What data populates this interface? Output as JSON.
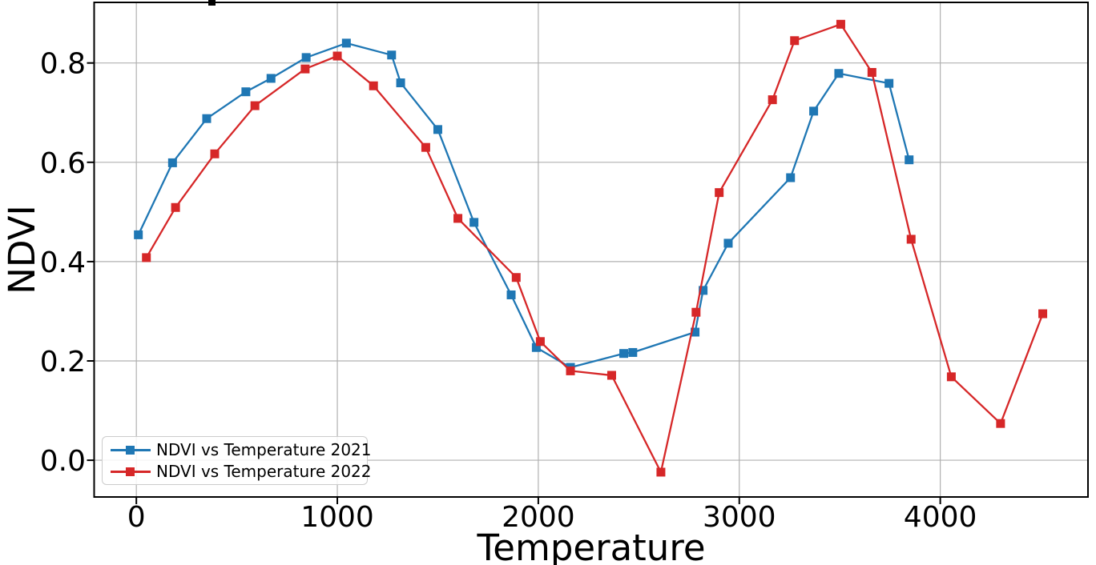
{
  "figure": {
    "background": "#ffffff"
  },
  "chart_data": {
    "type": "line",
    "xlabel": "Temperature",
    "ylabel": "NDVI",
    "x_ticks": {
      "values": [
        0,
        1000,
        2000,
        3000,
        4000
      ],
      "labels": [
        "0",
        "1000",
        "2000",
        "3000",
        "4000"
      ]
    },
    "y_ticks": {
      "values": [
        0.0,
        0.2,
        0.4,
        0.6,
        0.8
      ],
      "labels": [
        "0.0",
        "0.2",
        "0.4",
        "0.6",
        "0.8"
      ]
    },
    "xlim": [
      -210,
      4735
    ],
    "ylim": [
      -0.074,
      0.922
    ],
    "grid": true,
    "grid_color": "#b0b0b0",
    "axis_color": "#000000",
    "legend": {
      "position": "lower left"
    },
    "series": [
      {
        "name": "NDVI vs Temperature 2021",
        "color": "#1f77b4",
        "marker": "square",
        "x": [
          10,
          180,
          350,
          545,
          670,
          845,
          1045,
          1270,
          1315,
          1500,
          1680,
          1865,
          1990,
          2160,
          2425,
          2470,
          2780,
          2820,
          2945,
          3255,
          3370,
          3495,
          3745,
          3845
        ],
        "y": [
          0.454,
          0.599,
          0.688,
          0.742,
          0.769,
          0.811,
          0.84,
          0.816,
          0.76,
          0.666,
          0.479,
          0.333,
          0.227,
          0.187,
          0.215,
          0.217,
          0.258,
          0.342,
          0.437,
          0.569,
          0.703,
          0.779,
          0.759,
          0.605
        ]
      },
      {
        "name": "NDVI vs Temperature 2022",
        "color": "#d62728",
        "marker": "square",
        "x": [
          50,
          195,
          390,
          590,
          840,
          1000,
          1180,
          1440,
          1600,
          1890,
          2010,
          2160,
          2365,
          2610,
          2785,
          2900,
          3165,
          3275,
          3505,
          3660,
          3855,
          4055,
          4300,
          4510
        ],
        "y": [
          0.408,
          0.509,
          0.617,
          0.714,
          0.788,
          0.814,
          0.754,
          0.63,
          0.487,
          0.368,
          0.239,
          0.18,
          0.171,
          -0.024,
          0.298,
          0.539,
          0.726,
          0.845,
          0.878,
          0.781,
          0.445,
          0.168,
          0.074,
          0.295
        ]
      }
    ]
  }
}
